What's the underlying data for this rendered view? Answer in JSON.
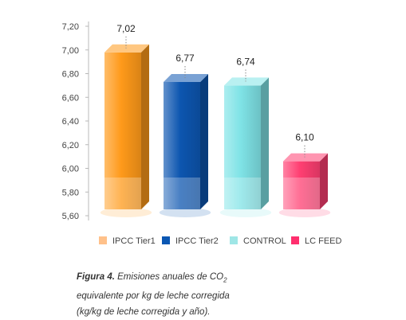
{
  "chart_data": {
    "type": "bar",
    "title": "",
    "xlabel": "",
    "ylabel": "",
    "categories": [
      "IPCC Tier1",
      "IPCC Tier2",
      "CONTROL",
      "LC FEED"
    ],
    "values": [
      7.02,
      6.77,
      6.74,
      6.1
    ],
    "value_labels": [
      "7,02",
      "6,77",
      "6,74",
      "6,10"
    ],
    "ylim": [
      5.6,
      7.2
    ],
    "yticks": [
      "5,60",
      "5,80",
      "6,00",
      "6,20",
      "6,40",
      "6,60",
      "6,80",
      "7,00",
      "7,20"
    ],
    "ytick_values": [
      5.6,
      5.8,
      6.0,
      6.2,
      6.4,
      6.6,
      6.8,
      7.0,
      7.2
    ],
    "grid": false,
    "legend_position": "bottom",
    "colors": [
      "#ff9a1a",
      "#0d56b0",
      "#7fe3e6",
      "#ff3f72"
    ],
    "legend_colors": [
      "#ffc18a",
      "#0b57b3",
      "#9fe6e6",
      "#ff2f6e"
    ]
  },
  "caption": {
    "figure_label": "Figura 4.",
    "line1_text": " Emisiones anuales de CO",
    "line1_sub": "2",
    "line2": "equivalente por kg de leche corregida",
    "line3": "(kg/kg de leche corregida y año)."
  }
}
